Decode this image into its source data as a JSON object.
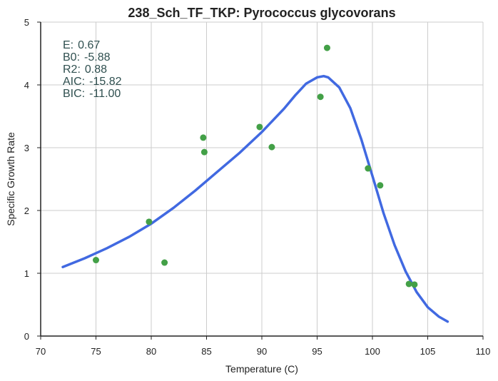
{
  "chart_data": {
    "type": "scatter",
    "title": "238_Sch_TF_TKP: Pyrococcus glycovorans",
    "xlabel": "Temperature (C)",
    "ylabel": "Specific Growth Rate",
    "xlim": [
      70,
      110
    ],
    "ylim": [
      0,
      5
    ],
    "xticks": [
      70,
      75,
      80,
      85,
      90,
      95,
      100,
      105,
      110
    ],
    "yticks": [
      0,
      1,
      2,
      3,
      4,
      5
    ],
    "grid": true,
    "colors": {
      "points": "#43a047",
      "fit": "#4169e1",
      "grid": "#cccccc",
      "axis": "#222222",
      "stats": "#2f4f4f"
    },
    "stats": [
      {
        "name": "E:",
        "value": "0.67"
      },
      {
        "name": "B0:",
        "value": "-5.88"
      },
      {
        "name": "R2:",
        "value": "0.88"
      },
      {
        "name": "AIC:",
        "value": "-15.82"
      },
      {
        "name": "BIC:",
        "value": "-11.00"
      }
    ],
    "series": [
      {
        "kind": "points",
        "x": [
          75.0,
          79.8,
          81.2,
          84.7,
          84.8,
          89.8,
          90.9,
          95.3,
          95.9,
          99.6,
          100.7,
          103.3,
          103.8
        ],
        "y": [
          1.21,
          1.82,
          1.17,
          3.16,
          2.93,
          3.33,
          3.01,
          3.81,
          4.59,
          2.67,
          2.4,
          0.83,
          0.82
        ]
      },
      {
        "kind": "fit",
        "x": [
          72,
          74,
          76,
          78,
          80,
          82,
          84,
          86,
          88,
          90,
          92,
          93,
          94,
          95,
          95.6,
          96,
          97,
          98,
          99,
          100,
          101,
          102,
          103,
          104,
          105,
          106,
          106.8
        ],
        "y": [
          1.1,
          1.24,
          1.4,
          1.58,
          1.79,
          2.04,
          2.32,
          2.62,
          2.92,
          3.25,
          3.62,
          3.83,
          4.02,
          4.12,
          4.14,
          4.12,
          3.96,
          3.63,
          3.13,
          2.55,
          1.96,
          1.45,
          1.03,
          0.7,
          0.46,
          0.31,
          0.23
        ]
      }
    ]
  }
}
